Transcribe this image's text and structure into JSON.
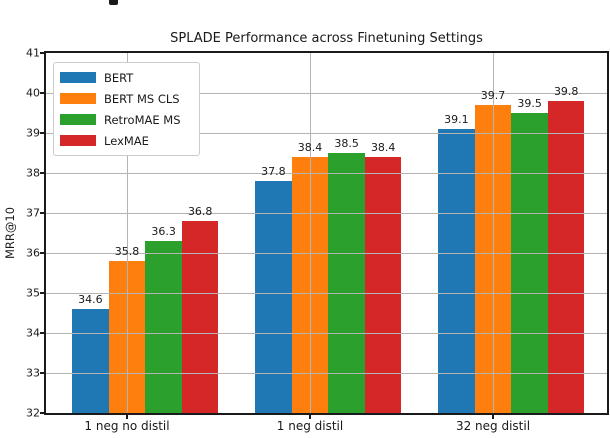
{
  "figure": {
    "title": "SPLADE Performance across Finetuning Settings",
    "ylabel": "MRR@10"
  },
  "chart_data": {
    "type": "bar",
    "title": "SPLADE Performance across Finetuning Settings",
    "xlabel": "",
    "ylabel": "MRR@10",
    "ylim": [
      32,
      41
    ],
    "yticks": [
      32,
      33,
      34,
      35,
      36,
      37,
      38,
      39,
      40,
      41
    ],
    "grid": true,
    "grid_above_bars": true,
    "legend_position": "upper left",
    "bar_value_labels": true,
    "categories": [
      "1 neg no distil",
      "1 neg distil",
      "32 neg distil"
    ],
    "series": [
      {
        "name": "BERT",
        "color": "#1f77b4",
        "values": [
          34.6,
          37.8,
          39.1
        ]
      },
      {
        "name": "BERT MS CLS",
        "color": "#ff7f0e",
        "values": [
          35.8,
          38.4,
          39.7
        ]
      },
      {
        "name": "RetroMAE MS",
        "color": "#2ca02c",
        "values": [
          36.3,
          38.5,
          39.5
        ]
      },
      {
        "name": "LexMAE",
        "color": "#d62728",
        "values": [
          36.8,
          38.4,
          39.8
        ]
      }
    ]
  },
  "colors": {
    "grid": "#b4b4b4",
    "spine": "#1a1a1a",
    "text": "#1a1a1a",
    "legend_border": "#cccccc",
    "background": "#ffffff"
  }
}
